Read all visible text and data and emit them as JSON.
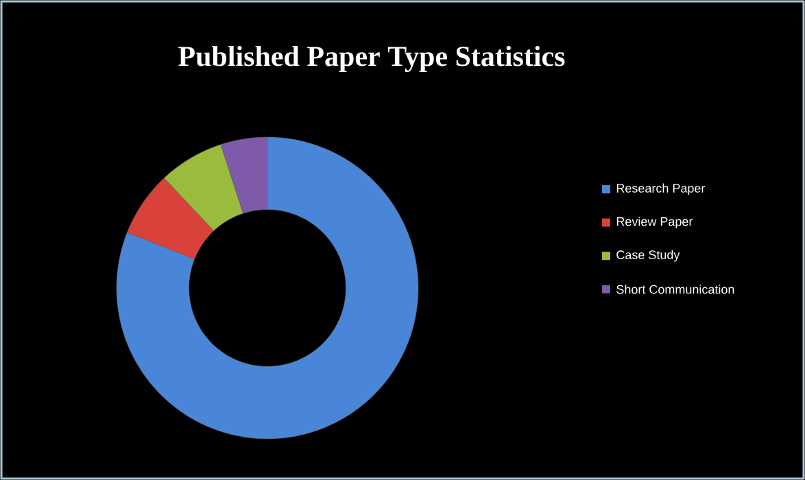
{
  "chart_data": {
    "type": "donut",
    "title": "Published Paper Type Statistics",
    "categories": [
      "Research Paper",
      "Review Paper",
      "Case Study",
      "Short Communication"
    ],
    "values": [
      81,
      7,
      7,
      5
    ],
    "colors": [
      "#4a86d8",
      "#d9413b",
      "#9bbb3c",
      "#7e5aa8"
    ],
    "legend": "right"
  }
}
